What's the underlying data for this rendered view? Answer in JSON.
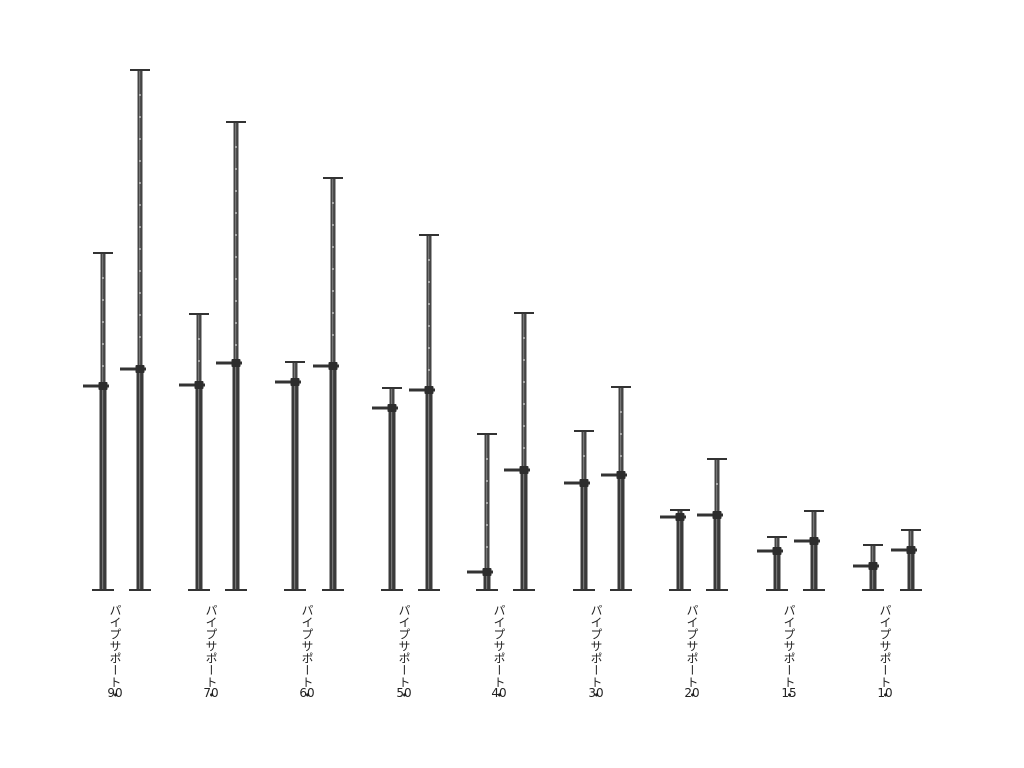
{
  "items": [
    {
      "name": "パイプサポート・",
      "size": "90"
    },
    {
      "name": "パイプサポート・",
      "size": "70"
    },
    {
      "name": "パイプサポート・",
      "size": "60"
    },
    {
      "name": "パイプサポート・",
      "size": "50"
    },
    {
      "name": "パイプサポート・",
      "size": "40"
    },
    {
      "name": "パイプサポート・",
      "size": "30"
    },
    {
      "name": "パイプサポート・",
      "size": "20"
    },
    {
      "name": "パイプサポート・",
      "size": "15"
    },
    {
      "name": "パイプサポート・",
      "size": "10"
    }
  ]
}
